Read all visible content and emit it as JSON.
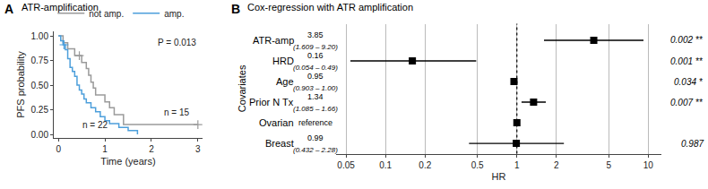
{
  "chart_data": [
    {
      "type": "line",
      "panel_label": "A",
      "title": "ATR-amplification",
      "x_label": "Time (years)",
      "y_label": "PFS probability",
      "line_style": "step",
      "legend": "top",
      "xlim": [
        -0.1,
        3.1
      ],
      "xticks": [
        0,
        1,
        2,
        3
      ],
      "ylim": [
        -0.04,
        1.05
      ],
      "yticks": [
        {
          "value": 0,
          "label": "0.00"
        },
        {
          "value": 0.25,
          "label": "0.25"
        },
        {
          "value": 0.5,
          "label": "0.50"
        },
        {
          "value": 0.75,
          "label": "0.75"
        },
        {
          "value": 1,
          "label": "1.00"
        }
      ],
      "annotations": [
        "P = 0.013",
        "n = 15",
        "n = 22"
      ],
      "series": [
        {
          "name": "not amp.",
          "color": "#9a9a9a",
          "marker": "cross",
          "x": [
            0,
            0.1,
            0.2,
            0.35,
            0.5,
            0.6,
            0.65,
            0.7,
            0.75,
            0.8,
            1.0,
            1.1,
            1.2,
            1.4,
            3.0
          ],
          "values": [
            1,
            0.93,
            0.87,
            0.8,
            0.73,
            0.67,
            0.6,
            0.53,
            0.47,
            0.4,
            0.33,
            0.27,
            0.2,
            0.1,
            0.1
          ],
          "censored": [
            0.45,
            3.0
          ]
        },
        {
          "name": "amp.",
          "color": "#4d9fdb",
          "marker": "cross",
          "x": [
            0,
            0.05,
            0.1,
            0.15,
            0.2,
            0.25,
            0.3,
            0.35,
            0.4,
            0.45,
            0.5,
            0.55,
            0.6,
            0.7,
            0.8,
            0.9,
            1.0,
            1.1,
            1.3,
            1.5,
            1.7
          ],
          "values": [
            1,
            0.95,
            0.91,
            0.86,
            0.77,
            0.68,
            0.64,
            0.59,
            0.5,
            0.45,
            0.41,
            0.36,
            0.32,
            0.27,
            0.23,
            0.18,
            0.14,
            0.11,
            0.07,
            0.04,
            0
          ],
          "censored": [
            0.12
          ]
        }
      ]
    },
    {
      "type": "forest",
      "panel_label": "B",
      "title": "Cox-regression with ATR amplification",
      "x_label": "HR",
      "y_label": "Covariates",
      "log": "x",
      "grid": true,
      "color": "#000000",
      "marker": "square",
      "ref_line": 1,
      "xlim": [
        0.042,
        12.6
      ],
      "xticks": [
        0.05,
        0.1,
        0.2,
        0.5,
        1,
        2,
        5,
        10
      ],
      "categories": [
        "ATR-amp",
        "HRD",
        "Age",
        "Prior N Tx",
        "Ovarian",
        "Breast"
      ],
      "values": [
        3.85,
        0.16,
        0.95,
        1.34,
        1,
        0.99
      ],
      "value_labels": [
        "3.85",
        "0.16",
        "0.95",
        "1.34",
        "reference",
        "0.99"
      ],
      "ci_low": [
        1.609,
        0.054,
        0.903,
        1.085,
        null,
        0.432
      ],
      "ci_high": [
        9.2,
        0.49,
        1.0,
        1.66,
        null,
        2.28
      ],
      "ci_labels": [
        "(1.609 – 9.20)",
        "(0.054 – 0.49)",
        "(0.903 – 1.00)",
        "(1.085 – 1.66)",
        null,
        "(0.432 – 2.28)"
      ],
      "p_labels": [
        "0.002 **",
        "0.001 **",
        "0.034 *",
        "0.007 **",
        null,
        "0.987"
      ]
    }
  ]
}
